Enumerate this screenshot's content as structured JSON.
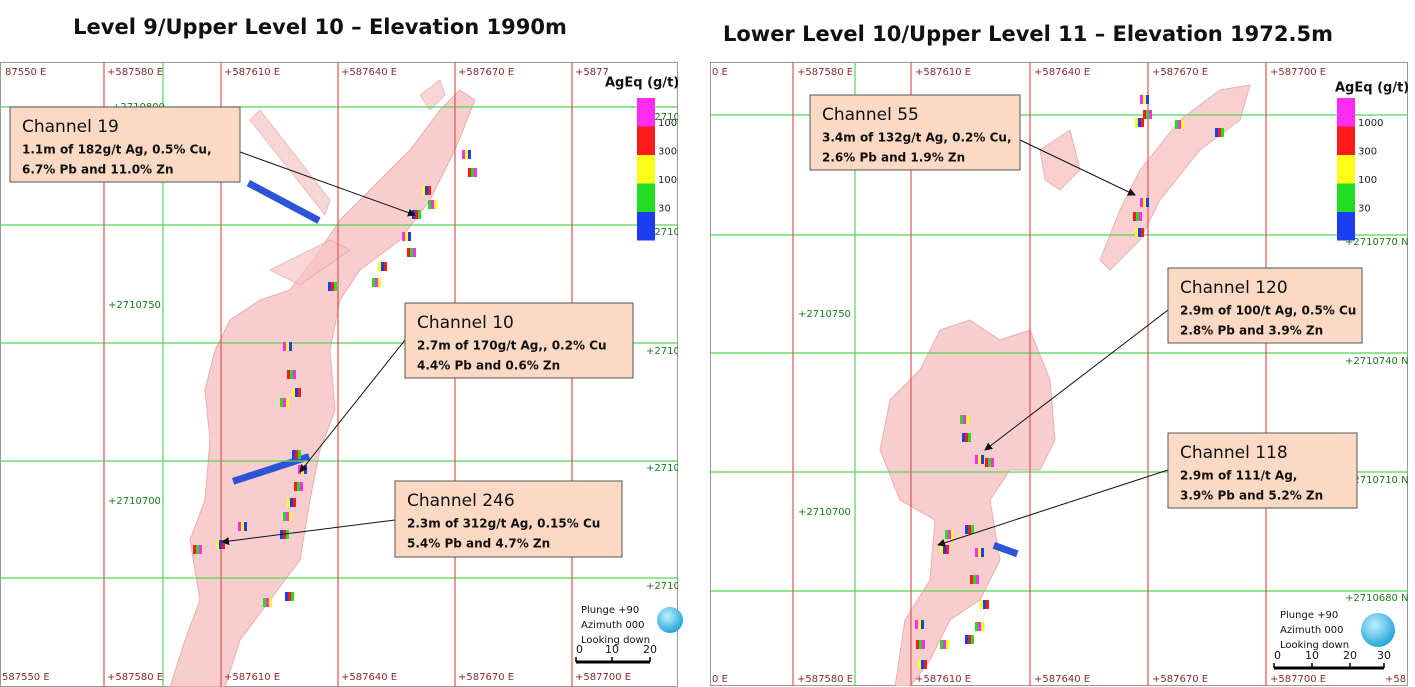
{
  "panels": [
    {
      "title": "Level 9/Upper Level 10 – Elevation 1990m",
      "top_labels": [
        "87550 E",
        "+587580 E",
        "+587610 E",
        "+587640 E",
        "+587670 E",
        "+5877"
      ],
      "bottom_labels": [
        "587550 E",
        "+587580 E",
        "+587610 E",
        "+587640 E",
        "+587670 E",
        "+587700 E"
      ],
      "left_labels": [
        "+2710800",
        "+2710750",
        "+2710700"
      ],
      "right_labels": [
        "+2710",
        "+27107",
        "+27107",
        "+27107",
        "+27106"
      ],
      "legend": {
        "title": "AgEq (g/t)",
        "labels": [
          "100",
          "300",
          "100",
          "30"
        ]
      },
      "callouts": [
        {
          "title": "Channel 19",
          "lines": [
            "1.1m of 182g/t Ag, 0.5% Cu,",
            "6.7% Pb and 11.0% Zn"
          ]
        },
        {
          "title": "Channel 10",
          "lines": [
            "2.7m of 170g/t Ag,, 0.2% Cu",
            "4.4% Pb and 0.6% Zn"
          ]
        },
        {
          "title": "Channel 246",
          "lines": [
            "2.3m of 312g/t Ag, 0.15% Cu",
            "5.4% Pb and 4.7% Zn"
          ]
        }
      ],
      "view": [
        "Plunge +90",
        "Azimuth 000",
        "Looking down"
      ],
      "scale": [
        "0",
        "10",
        "20"
      ]
    },
    {
      "title": "Lower Level 10/Upper Level 11 – Elevation 1972.5m",
      "top_labels": [
        "0 E",
        "+587580 E",
        "+587610 E",
        "+587640 E",
        "+587670 E",
        "+587700 E"
      ],
      "bottom_labels": [
        "0 E",
        "+587580 E",
        "+587610 E",
        "+587640 E",
        "+587670 E",
        "+587700 E",
        "+58"
      ],
      "left_labels": [
        "+2710750",
        "+2710700"
      ],
      "right_labels": [
        "+2710770 N",
        "+2710740 N",
        "+2710710 N",
        "+2710680 N"
      ],
      "legend": {
        "title": "AgEq (g/t)",
        "labels": [
          "1000",
          "300",
          "100",
          "30"
        ]
      },
      "callouts": [
        {
          "title": "Channel 55",
          "lines": [
            "3.4m of 132g/t Ag, 0.2% Cu,",
            "2.6% Pb and 1.9% Zn"
          ]
        },
        {
          "title": "Channel 120",
          "lines": [
            "2.9m of 100/t Ag, 0.5% Cu",
            "2.8% Pb and 3.9% Zn"
          ]
        },
        {
          "title": "Channel 118",
          "lines": [
            "2.9m of 111/t Ag,",
            "3.9% Pb and 5.2% Zn"
          ]
        }
      ],
      "view": [
        "Plunge +90",
        "Azimuth 000",
        "Looking down"
      ],
      "scale": [
        "0",
        "10",
        "20",
        "30"
      ]
    }
  ]
}
